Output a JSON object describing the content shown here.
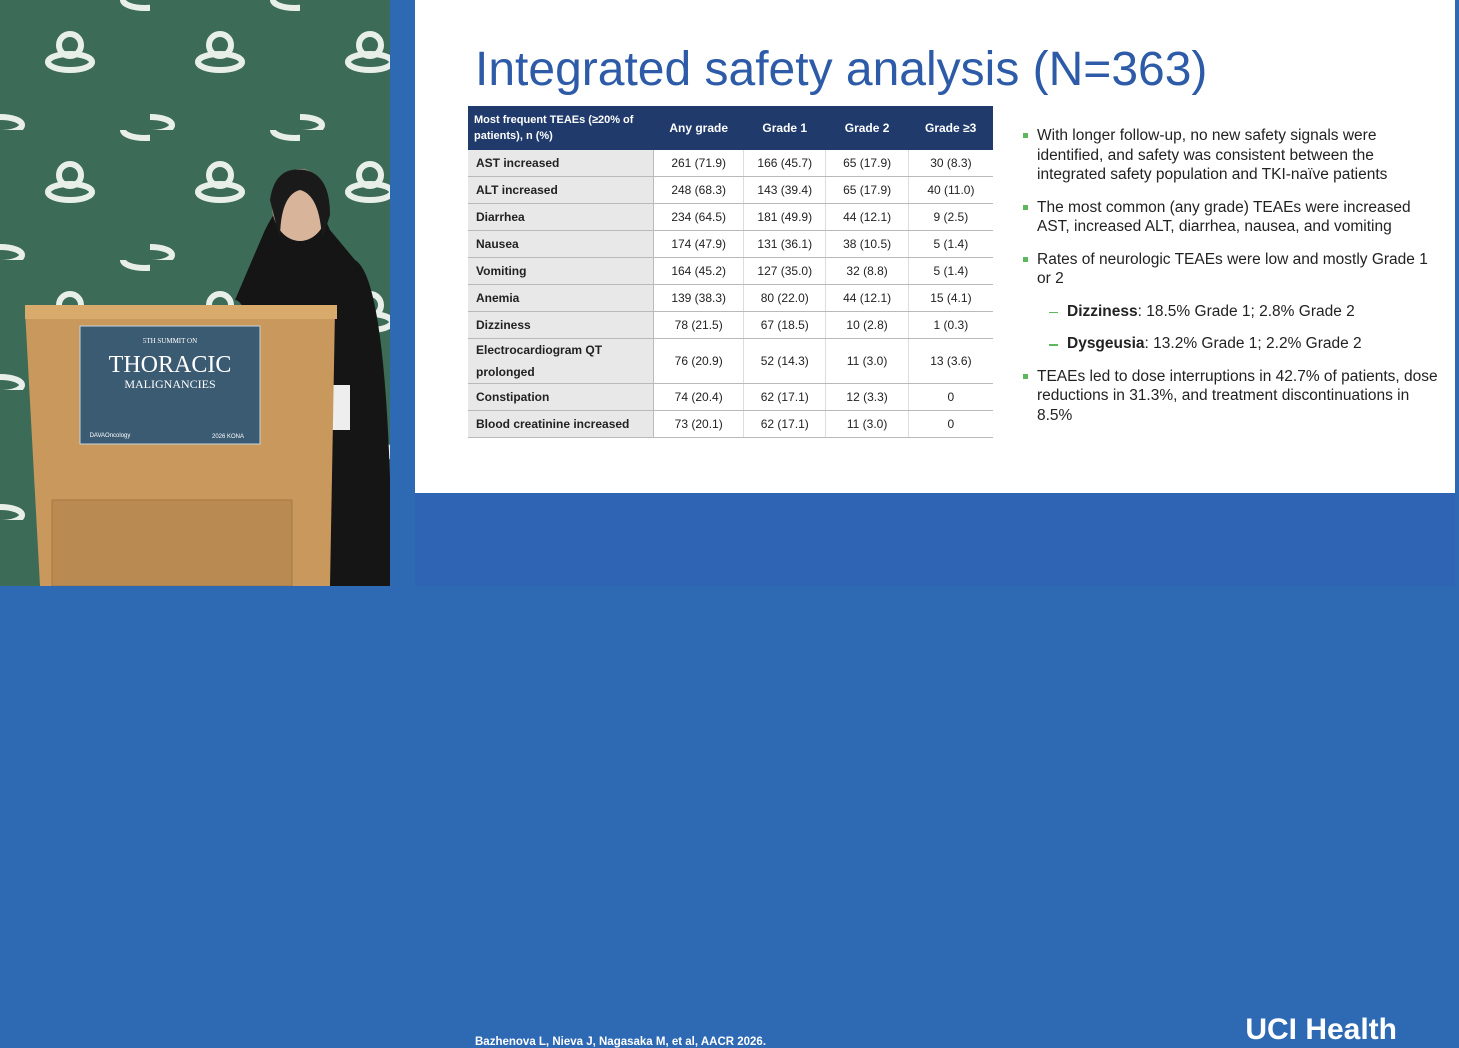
{
  "podium": {
    "line1": "5TH SUMMIT ON",
    "line2": "THORACIC",
    "line3": "MALIGNANCIES",
    "logo": "DAVAOncology",
    "event": "2026 KONA"
  },
  "slide": {
    "title": "Integrated safety analysis (N=363)",
    "table": {
      "header": [
        "Most frequent TEAEs (≥20% of patients), n (%)",
        "Any grade",
        "Grade 1",
        "Grade 2",
        "Grade ≥3"
      ],
      "rows": [
        [
          "AST increased",
          "261 (71.9)",
          "166 (45.7)",
          "65 (17.9)",
          "30 (8.3)"
        ],
        [
          "ALT increased",
          "248 (68.3)",
          "143 (39.4)",
          "65 (17.9)",
          "40 (11.0)"
        ],
        [
          "Diarrhea",
          "234 (64.5)",
          "181 (49.9)",
          "44 (12.1)",
          "9 (2.5)"
        ],
        [
          "Nausea",
          "174 (47.9)",
          "131 (36.1)",
          "38 (10.5)",
          "5 (1.4)"
        ],
        [
          "Vomiting",
          "164 (45.2)",
          "127 (35.0)",
          "32 (8.8)",
          "5 (1.4)"
        ],
        [
          "Anemia",
          "139 (38.3)",
          "80 (22.0)",
          "44 (12.1)",
          "15 (4.1)"
        ],
        [
          "Dizziness",
          "78 (21.5)",
          "67 (18.5)",
          "10 (2.8)",
          "1 (0.3)"
        ],
        [
          "Electrocardiogram QT prolonged",
          "76 (20.9)",
          "52 (14.3)",
          "11 (3.0)",
          "13 (3.6)"
        ],
        [
          "Constipation",
          "74 (20.4)",
          "62 (17.1)",
          "12 (3.3)",
          "0"
        ],
        [
          "Blood creatinine increased",
          "73 (20.1)",
          "62 (17.1)",
          "11 (3.0)",
          "0"
        ]
      ]
    },
    "bullets": [
      {
        "text": "With longer follow-up, no new safety signals were identified, and safety was consistent between the integrated safety population and TKI-naïve patients"
      },
      {
        "text": "The most common (any grade) TEAEs were increased AST, increased ALT, diarrhea, nausea, and vomiting"
      },
      {
        "text": "Rates of neurologic TEAEs were low and mostly Grade 1 or 2"
      },
      {
        "term": "Dizziness",
        "text": ": 18.5% Grade 1; 2.8% Grade 2"
      },
      {
        "term": "Dysgeusia",
        "text": ": 13.2% Grade 1; 2.2% Grade 2"
      },
      {
        "text": "TEAEs led to dose interruptions in 42.7% of patients, dose reductions in 31.3%, and treatment discontinuations in 8.5%"
      }
    ],
    "citation": "Bazhenova L, Nieva J, Nagasaka M, et al, AACR 2026.",
    "logo": "UCI Health"
  }
}
